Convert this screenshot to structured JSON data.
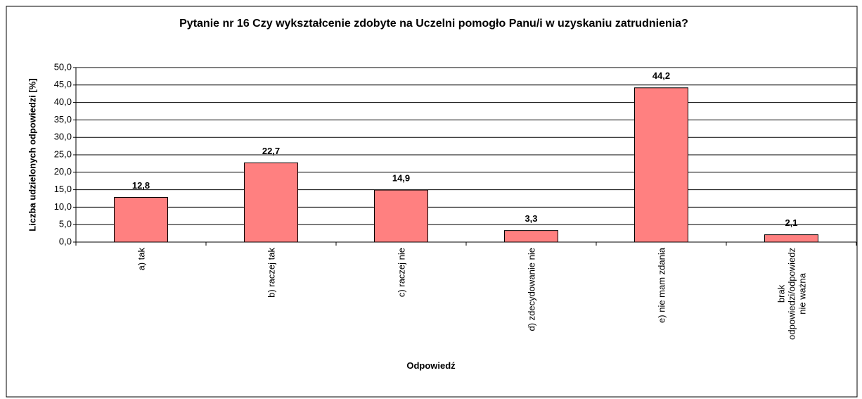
{
  "chart_data": {
    "type": "bar",
    "title": "Pytanie nr 16 Czy wykształcenie zdobyte na Uczelni pomogło Panu/i w uzyskaniu zatrudnienia?",
    "x_label": "Odpowiedź",
    "y_label": "Liczba udzielonych odpowiedzi [%]",
    "categories": [
      "a) tak",
      "b) raczej tak",
      "c) raczej nie",
      "d) zdecydowanie nie",
      "e) nie mam zdania",
      "brak odpowiedzi/odpowiedz nie ważna"
    ],
    "values": [
      12.8,
      22.7,
      14.9,
      3.3,
      44.2,
      2.1
    ],
    "value_labels": [
      "12,8",
      "22,7",
      "14,9",
      "3,3",
      "44,2",
      "2,1"
    ],
    "color": "#ff8080",
    "ylim": [
      0,
      50
    ],
    "yticks": [
      {
        "value": 0,
        "label": "0,0"
      },
      {
        "value": 5,
        "label": "5,0"
      },
      {
        "value": 10,
        "label": "10,0"
      },
      {
        "value": 15,
        "label": "15,0"
      },
      {
        "value": 20,
        "label": "20,0"
      },
      {
        "value": 25,
        "label": "25,0"
      },
      {
        "value": 30,
        "label": "30,0"
      },
      {
        "value": 35,
        "label": "35,0"
      },
      {
        "value": 40,
        "label": "40,0"
      },
      {
        "value": 45,
        "label": "45,0"
      },
      {
        "value": 50,
        "label": "50,0"
      }
    ],
    "grid": true
  }
}
